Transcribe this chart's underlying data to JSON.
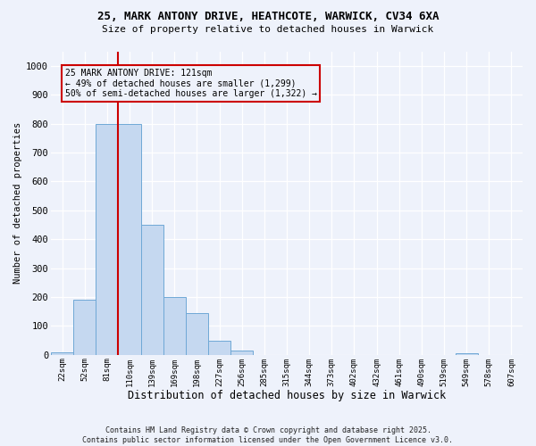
{
  "title_line1": "25, MARK ANTONY DRIVE, HEATHCOTE, WARWICK, CV34 6XA",
  "title_line2": "Size of property relative to detached houses in Warwick",
  "xlabel": "Distribution of detached houses by size in Warwick",
  "ylabel": "Number of detached properties",
  "categories": [
    "22sqm",
    "52sqm",
    "81sqm",
    "110sqm",
    "139sqm",
    "169sqm",
    "198sqm",
    "227sqm",
    "256sqm",
    "285sqm",
    "315sqm",
    "344sqm",
    "373sqm",
    "402sqm",
    "432sqm",
    "461sqm",
    "490sqm",
    "519sqm",
    "549sqm",
    "578sqm",
    "607sqm"
  ],
  "values": [
    10,
    192,
    800,
    800,
    450,
    200,
    145,
    50,
    15,
    0,
    0,
    0,
    0,
    0,
    0,
    0,
    0,
    0,
    5,
    0,
    0
  ],
  "bar_color": "#c5d8f0",
  "bar_edge_color": "#6fa8d6",
  "vline_x": 3.0,
  "vline_color": "#cc0000",
  "annotation_text": "25 MARK ANTONY DRIVE: 121sqm\n← 49% of detached houses are smaller (1,299)\n50% of semi-detached houses are larger (1,322) →",
  "box_color": "#cc0000",
  "ylim": [
    0,
    1050
  ],
  "yticks": [
    0,
    100,
    200,
    300,
    400,
    500,
    600,
    700,
    800,
    900,
    1000
  ],
  "footnote": "Contains HM Land Registry data © Crown copyright and database right 2025.\nContains public sector information licensed under the Open Government Licence v3.0.",
  "background_color": "#eef2fb",
  "grid_color": "#ffffff"
}
